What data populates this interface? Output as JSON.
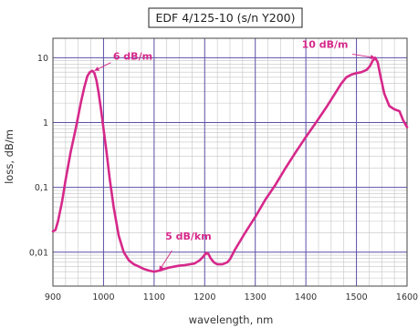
{
  "chart_data": {
    "type": "line",
    "title": "EDF 4/125-10 (s/n Y200)",
    "xlabel": "wavelength, nm",
    "ylabel": "loss, dB/m",
    "xlim": [
      900,
      1600
    ],
    "ylim": [
      0.003,
      20
    ],
    "y_scale": "log",
    "grid": true,
    "x_ticks": [
      900,
      1000,
      1100,
      1200,
      1300,
      1400,
      1500,
      1600
    ],
    "x_tick_labels": [
      "900",
      "1000",
      "1100",
      "1200",
      "1300",
      "1400",
      "1500",
      "1600"
    ],
    "y_ticks": [
      0.01,
      0.1,
      1,
      10
    ],
    "y_tick_labels": [
      "0,01",
      "0,1",
      "1",
      "10"
    ],
    "line_color": "#d6288a",
    "series": [
      {
        "x": [
          900,
          905,
          910,
          918,
          925,
          935,
          945,
          955,
          962,
          968,
          973,
          978,
          982,
          986,
          990,
          995,
          1000,
          1006,
          1012,
          1020,
          1030,
          1040,
          1050,
          1060,
          1070,
          1080,
          1090,
          1100,
          1110,
          1120,
          1130,
          1140,
          1150,
          1160,
          1170,
          1180,
          1190,
          1197,
          1203,
          1207,
          1212,
          1218,
          1225,
          1235,
          1245,
          1250,
          1260,
          1280,
          1300,
          1320,
          1340,
          1360,
          1380,
          1400,
          1420,
          1440,
          1460,
          1470,
          1480,
          1490,
          1500,
          1510,
          1520,
          1527,
          1532,
          1537,
          1542,
          1548,
          1555,
          1565,
          1575,
          1585,
          1592,
          1600
        ],
        "y": [
          0.021,
          0.022,
          0.03,
          0.06,
          0.13,
          0.35,
          0.8,
          2.0,
          3.5,
          5.2,
          6.0,
          6.3,
          5.8,
          4.5,
          3.0,
          1.6,
          0.8,
          0.35,
          0.14,
          0.05,
          0.018,
          0.01,
          0.0075,
          0.0065,
          0.006,
          0.0055,
          0.0052,
          0.005,
          0.0052,
          0.0055,
          0.0058,
          0.006,
          0.0062,
          0.0063,
          0.0065,
          0.0067,
          0.0075,
          0.0085,
          0.0098,
          0.0095,
          0.008,
          0.007,
          0.0065,
          0.0065,
          0.007,
          0.0078,
          0.011,
          0.02,
          0.035,
          0.065,
          0.11,
          0.2,
          0.35,
          0.6,
          1.0,
          1.7,
          3.0,
          4.0,
          5.0,
          5.5,
          5.8,
          6.0,
          6.5,
          7.5,
          9.0,
          10.0,
          8.5,
          5.0,
          2.8,
          1.8,
          1.6,
          1.5,
          1.1,
          0.85
        ]
      }
    ],
    "annotations": [
      {
        "text": "6 dB/m",
        "x": 982,
        "y": 6.3
      },
      {
        "text": "5 dB/km",
        "x": 1110,
        "y": 0.0052
      },
      {
        "text": "10 dB/m",
        "x": 1537,
        "y": 10
      }
    ]
  }
}
